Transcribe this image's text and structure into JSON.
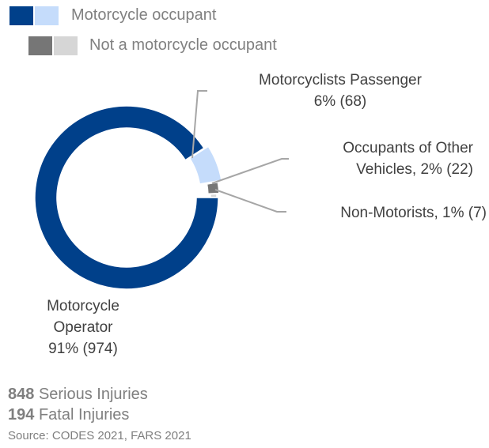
{
  "chart_data": {
    "type": "donut",
    "legend": [
      {
        "name": "Motorcycle occupant",
        "colors": [
          "#00408a",
          "#c5dcfb"
        ]
      },
      {
        "name": "Not a motorcycle occupant",
        "colors": [
          "#767676",
          "#d6d6d6"
        ]
      }
    ],
    "categories": [
      "Motorcycle Operator",
      "Motorcyclists Passenger",
      "Occupants of Other Vehicles,",
      "Non-Motorists,"
    ],
    "values": [
      974,
      68,
      22,
      7
    ],
    "value_labels": [
      "91% (974)",
      "6% (68)",
      "2% (22)",
      "1% (7)"
    ],
    "colors": [
      "#00408a",
      "#c5dcfb",
      "#767676",
      "#d6d6d6"
    ],
    "totals": [
      {
        "number": 848,
        "text": "Serious Injuries"
      },
      {
        "number": 194,
        "text": "Fatal Injuries"
      }
    ],
    "source": "Source: CODES 2021, FARS 2021"
  }
}
